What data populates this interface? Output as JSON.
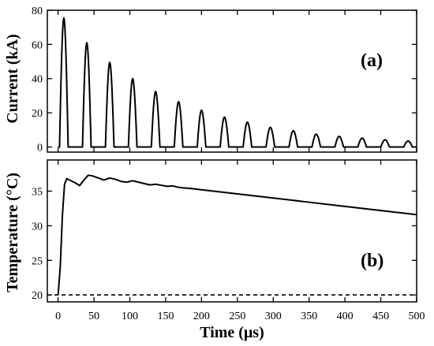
{
  "chart_data": [
    {
      "type": "line",
      "panel_label": "(a)",
      "ylabel": "Current (kA)",
      "xlim": [
        -15,
        500
      ],
      "ylim": [
        -3,
        80
      ],
      "xticks": [
        0,
        50,
        100,
        150,
        200,
        250,
        300,
        350,
        400,
        450,
        500
      ],
      "yticks": [
        0,
        20,
        40,
        60,
        80
      ],
      "grid": false,
      "pulse_width_us": 12,
      "series": [
        {
          "pulses": {
            "x": [
              8,
              40,
              72,
              104,
              136,
              168,
              200,
              232,
              264,
              296,
              328,
              360,
              392,
              424,
              456,
              488
            ],
            "y": [
              75.5,
              61,
              49.5,
              40,
              32.5,
              26.5,
              21.5,
              17.5,
              14.5,
              11.5,
              9.5,
              7.5,
              6.2,
              5.2,
              4.2,
              3.5
            ]
          }
        }
      ]
    },
    {
      "type": "line",
      "panel_label": "(b)",
      "ylabel": "Temperature (°C)",
      "xlabel": "Time (μs)",
      "xlim": [
        -15,
        500
      ],
      "ylim": [
        19,
        39.5
      ],
      "xticks": [
        0,
        50,
        100,
        150,
        200,
        250,
        300,
        350,
        400,
        450,
        500
      ],
      "yticks": [
        20,
        25,
        30,
        35
      ],
      "grid": false,
      "series": [
        {
          "style": "solid",
          "x": [
            0,
            3,
            6,
            9,
            12,
            18,
            24,
            30,
            36,
            42,
            48,
            56,
            64,
            72,
            80,
            88,
            96,
            104,
            112,
            120,
            128,
            136,
            144,
            152,
            160,
            168,
            176,
            184,
            192,
            200,
            225,
            250,
            275,
            300,
            325,
            350,
            375,
            400,
            425,
            450,
            475,
            500
          ],
          "y": [
            20,
            24,
            31.5,
            36,
            36.8,
            36.5,
            36.2,
            35.8,
            36.6,
            37.3,
            37.2,
            36.9,
            36.6,
            36.9,
            36.7,
            36.4,
            36.3,
            36.5,
            36.3,
            36.1,
            35.9,
            36.0,
            35.85,
            35.7,
            35.75,
            35.55,
            35.45,
            35.4,
            35.3,
            35.2,
            34.9,
            34.6,
            34.3,
            34.0,
            33.7,
            33.4,
            33.1,
            32.8,
            32.5,
            32.2,
            31.9,
            31.6
          ]
        },
        {
          "style": "dashed",
          "x": [
            -15,
            500
          ],
          "y": [
            20,
            20
          ]
        }
      ]
    }
  ]
}
